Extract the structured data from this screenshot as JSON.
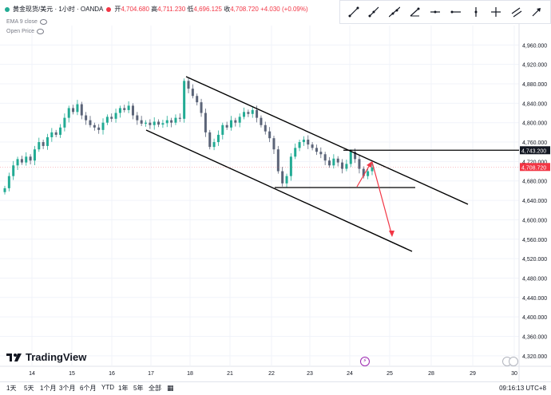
{
  "header": {
    "symbol": "黄金现货/美元 · 1小时 · OANDA",
    "open_label": "开",
    "open": "4,704.680",
    "high_label": "高",
    "high": "4,711.230",
    "low_label": "低",
    "low": "4,696.125",
    "close_label": "收",
    "close": "4,708.720",
    "change": "+4.030 (+0.09%)",
    "ema_label": "EMA 9 close",
    "open_price_label": "Open Price"
  },
  "toolbar": {
    "tools": [
      "trend-line-icon",
      "ray-icon",
      "extended-line-icon",
      "trend-angle-icon",
      "horizontal-line-icon",
      "horizontal-ray-icon",
      "vertical-line-icon",
      "cross-line-icon",
      "parallel-channel-icon",
      "arrow-icon"
    ]
  },
  "colors": {
    "up": "#22ab94",
    "down": "#5b6478",
    "accent": "#f23645",
    "line": "#000000",
    "grid": "#f0f3fa"
  },
  "chart_data": {
    "type": "candlestick",
    "ylim": [
      4300,
      5000
    ],
    "y_ticks": [
      "4,960.000",
      "4,920.000",
      "4,880.000",
      "4,840.000",
      "4,800.000",
      "4,760.000",
      "4,720.000",
      "4,680.000",
      "4,640.000",
      "4,600.000",
      "4,560.000",
      "4,520.000",
      "4,480.000",
      "4,440.000",
      "4,400.000",
      "4,360.000",
      "4,320.000"
    ],
    "y_tick_values": [
      4960,
      4920,
      4880,
      4840,
      4800,
      4760,
      4720,
      4680,
      4640,
      4600,
      4560,
      4520,
      4480,
      4440,
      4400,
      4360,
      4320
    ],
    "x_ticks": [
      "14",
      "15",
      "16",
      "17",
      "18",
      "21",
      "22",
      "23",
      "24",
      "25",
      "28",
      "29",
      "30"
    ],
    "x_tick_index": [
      0,
      1,
      2,
      3,
      4,
      5,
      6,
      7,
      8,
      9,
      10,
      11,
      12
    ],
    "price_labels": [
      {
        "value": 4743.2,
        "text": "4,743.200",
        "style": "black"
      },
      {
        "value": 4708.72,
        "text": "4,708.720",
        "style": "red"
      }
    ],
    "closes": [
      4665,
      4690,
      4712,
      4725,
      4718,
      4730,
      4722,
      4745,
      4760,
      4752,
      4770,
      4780,
      4775,
      4790,
      4810,
      4830,
      4822,
      4838,
      4815,
      4805,
      4795,
      4790,
      4785,
      4800,
      4812,
      4808,
      4820,
      4830,
      4826,
      4835,
      4815,
      4805,
      4798,
      4800,
      4795,
      4802,
      4796,
      4799,
      4805,
      4800,
      4810,
      4808,
      4886,
      4870,
      4855,
      4842,
      4820,
      4780,
      4750,
      4760,
      4775,
      4795,
      4790,
      4805,
      4800,
      4812,
      4822,
      4818,
      4826,
      4810,
      4795,
      4782,
      4768,
      4745,
      4700,
      4675,
      4690,
      4730,
      4748,
      4760,
      4765,
      4755,
      4748,
      4740,
      4735,
      4722,
      4712,
      4726,
      4718,
      4705,
      4715,
      4740,
      4725,
      4705,
      4690,
      4700,
      4708
    ]
  },
  "footer": {
    "logo": "TradingView",
    "timeframes": [
      "1天",
      "5天",
      "1个月",
      "3个月",
      "6个月",
      "YTD",
      "1年",
      "5年",
      "全部"
    ],
    "clock": "09:16:13 UTC+8"
  }
}
